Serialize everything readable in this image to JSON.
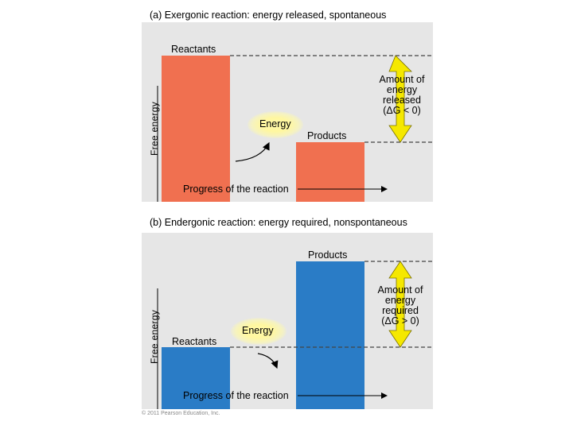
{
  "panel_a": {
    "title": "(a) Exergonic reaction: energy released, spontaneous",
    "y_label": "Free energy",
    "x_label": "Progress of the reaction",
    "reactants_label": "Reactants",
    "products_label": "Products",
    "energy_label": "Energy",
    "amount_text": "Amount of\nenergy\nreleased\n(ΔG < 0)",
    "bar_color": "#f07050",
    "arrow_color": "#f5e800"
  },
  "panel_b": {
    "title": "(b) Endergonic reaction: energy required, nonspontaneous",
    "y_label": "Free energy",
    "x_label": "Progress of the reaction",
    "reactants_label": "Reactants",
    "products_label": "Products",
    "energy_label": "Energy",
    "amount_text": "Amount of\nenergy\nrequired\n(ΔG > 0)",
    "bar_color": "#2a7cc6",
    "arrow_color": "#f5e800"
  },
  "copyright": "© 2011 Pearson Education, Inc."
}
